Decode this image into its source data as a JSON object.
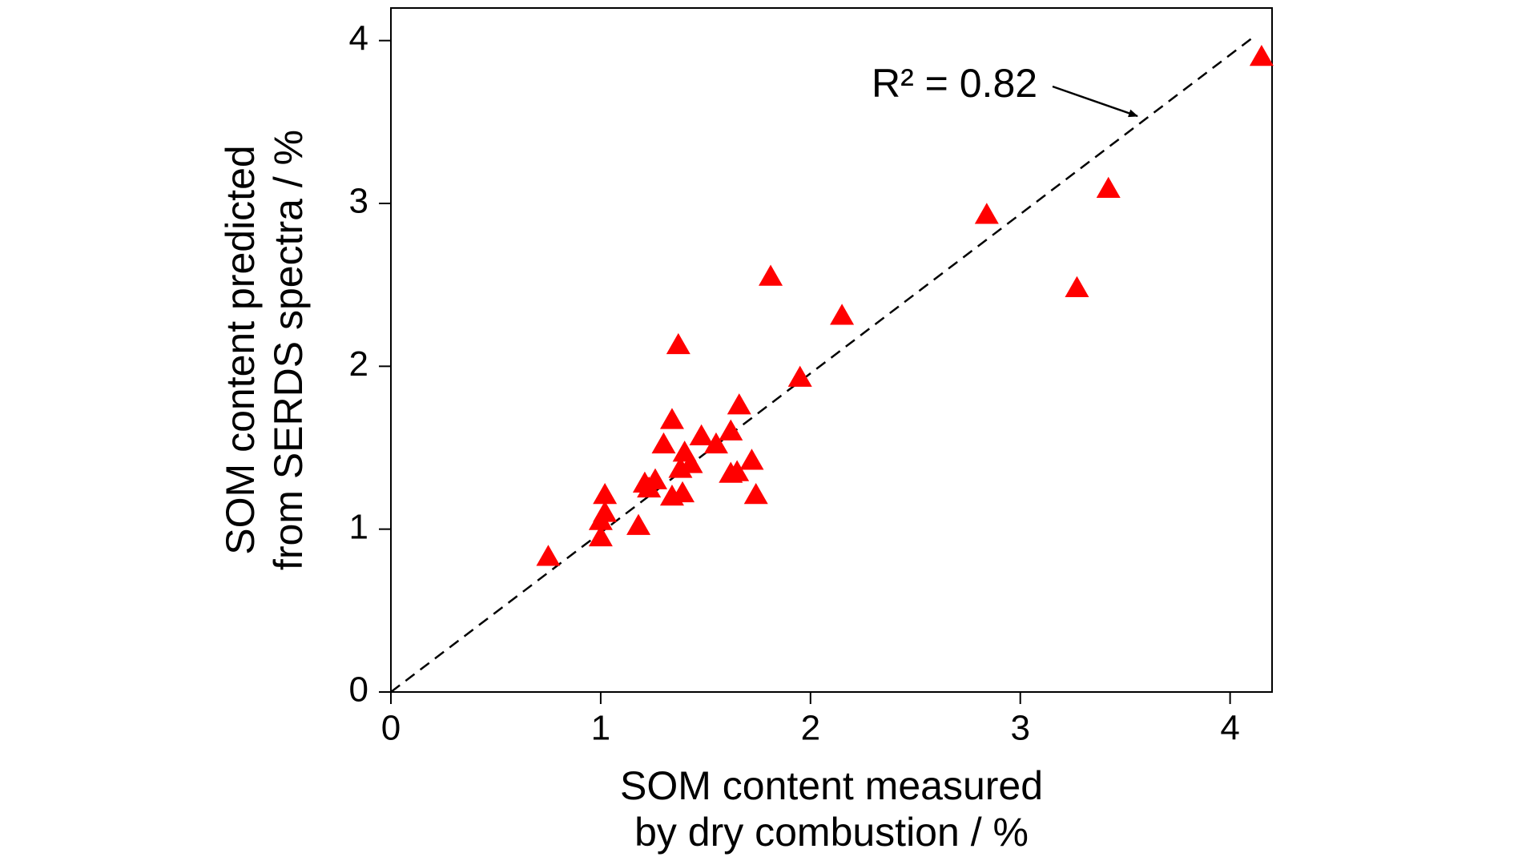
{
  "chart_data": {
    "type": "scatter",
    "x_label": [
      "SOM content measured",
      "by dry combustion / %"
    ],
    "y_label": [
      "SOM content predicted",
      "from SERDS spectra / %"
    ],
    "annotation": "R² = 0.82",
    "x": [
      0.75,
      1.0,
      1.0,
      1.02,
      1.02,
      1.18,
      1.21,
      1.23,
      1.26,
      1.3,
      1.34,
      1.34,
      1.37,
      1.38,
      1.39,
      1.4,
      1.43,
      1.48,
      1.55,
      1.62,
      1.62,
      1.65,
      1.66,
      1.72,
      1.74,
      1.81,
      1.95,
      2.15,
      2.84,
      3.27,
      3.42,
      4.15
    ],
    "values": [
      0.83,
      0.95,
      1.05,
      1.1,
      1.21,
      1.02,
      1.28,
      1.25,
      1.3,
      1.52,
      1.2,
      1.67,
      2.13,
      1.37,
      1.22,
      1.47,
      1.4,
      1.57,
      1.52,
      1.6,
      1.34,
      1.35,
      1.76,
      1.42,
      1.21,
      2.55,
      1.93,
      2.31,
      2.93,
      2.48,
      3.09,
      3.9
    ],
    "color": "#ff0000",
    "fit_line": {
      "x": [
        0,
        4.12
      ],
      "y": [
        0,
        4.03
      ]
    },
    "xlim": [
      0,
      4.2
    ],
    "ylim": [
      0,
      4.2
    ],
    "xticks": [
      0,
      1,
      2,
      3,
      4
    ],
    "yticks": [
      0,
      1,
      2,
      3,
      4
    ]
  }
}
